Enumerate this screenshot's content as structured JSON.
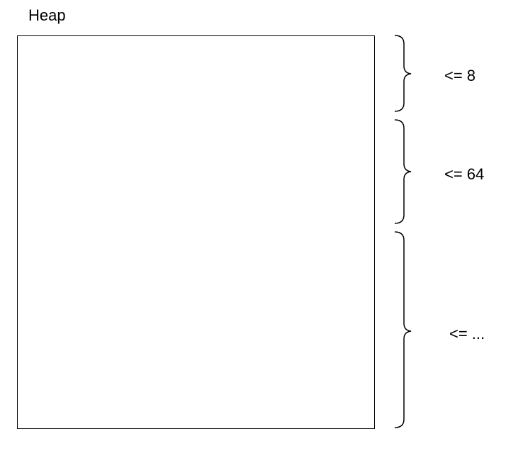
{
  "heap": {
    "title": "Heap"
  },
  "ranges": [
    {
      "label": "<= 8"
    },
    {
      "label": "<= 64"
    },
    {
      "label": "<= ..."
    }
  ],
  "colors": {
    "stroke": "#000000",
    "background": "#ffffff"
  }
}
